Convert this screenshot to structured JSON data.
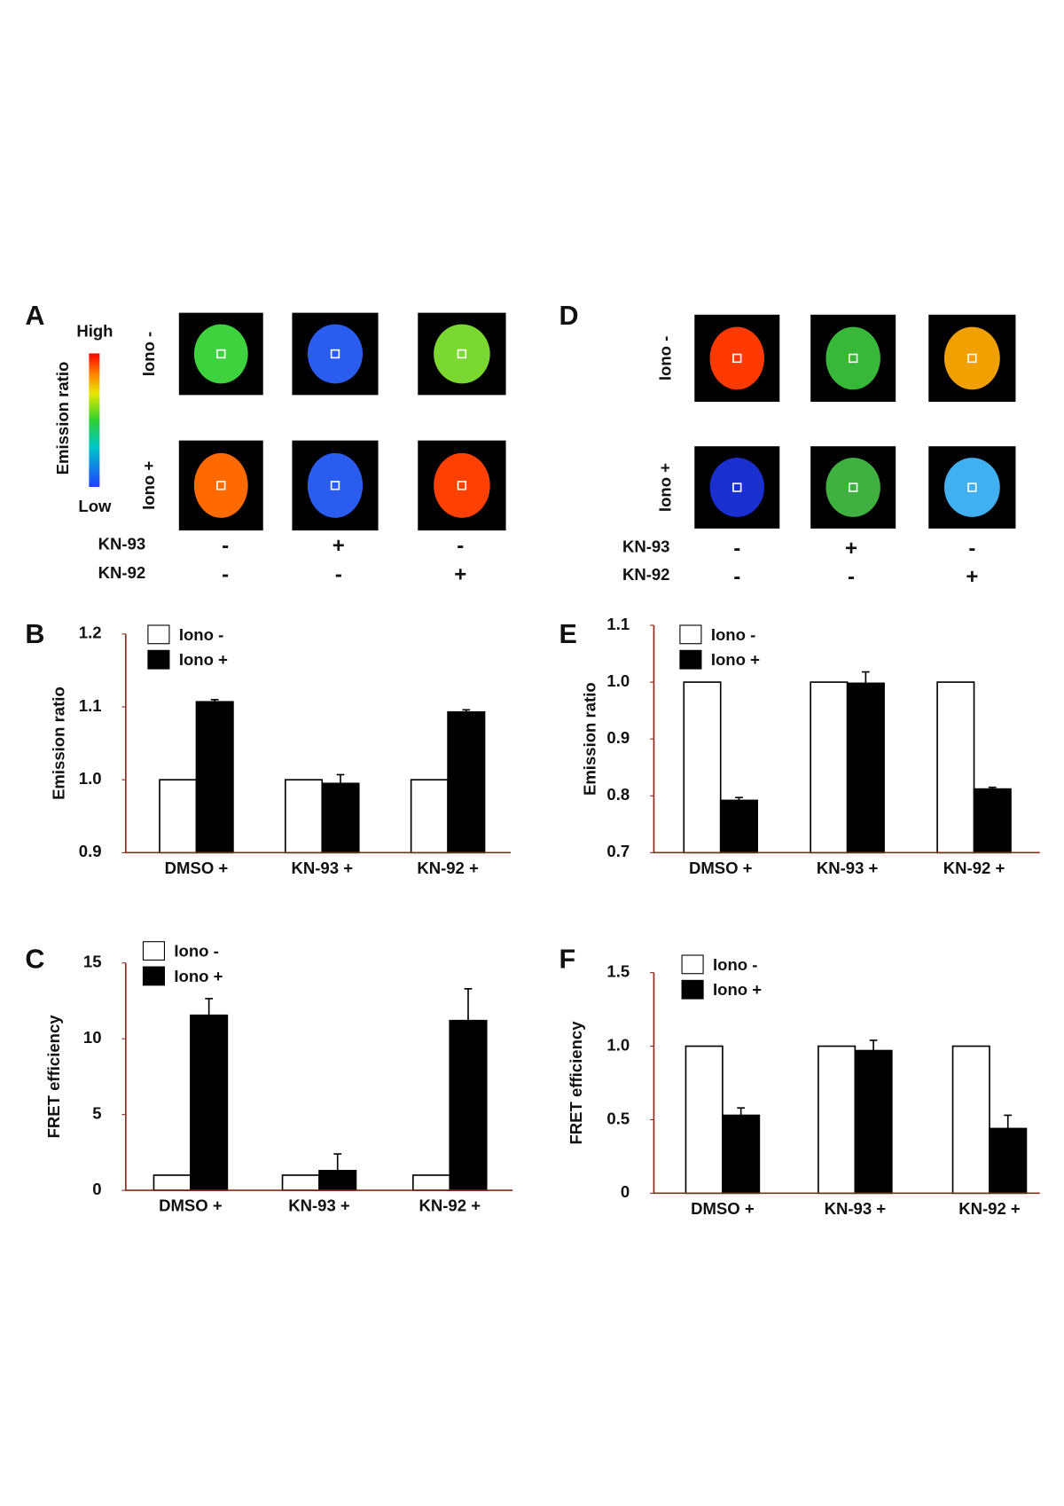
{
  "panel_A": {
    "letter": "A",
    "colorbar_title": "Emission ratio",
    "colorbar_high": "High",
    "colorbar_low": "Low",
    "rows": [
      "Iono -",
      "Iono +"
    ],
    "treatments": [
      {
        "name": "KN-93",
        "signs": [
          "-",
          "+",
          "-"
        ]
      },
      {
        "name": "KN-92",
        "signs": [
          "-",
          "-",
          "+"
        ]
      }
    ]
  },
  "panel_D": {
    "letter": "D",
    "rows": [
      "Iono -",
      "Iono +"
    ],
    "treatments": [
      {
        "name": "KN-93",
        "signs": [
          "-",
          "+",
          "-"
        ]
      },
      {
        "name": "KN-92",
        "signs": [
          "-",
          "-",
          "+"
        ]
      }
    ]
  },
  "chart_data": [
    {
      "panel": "B",
      "type": "bar",
      "y_label": "Emission ratio",
      "categories": [
        "DMSO +",
        "KN-93 +",
        "KN-92 +"
      ],
      "ylim": [
        0.9,
        1.2
      ],
      "yticks": [
        0.9,
        {
          "value": 1,
          "label": "1.0"
        },
        1.1,
        1.2
      ],
      "series": [
        {
          "name": "Iono -",
          "color": "#ffffff",
          "values": [
            1,
            1,
            1
          ]
        },
        {
          "name": "Iono +",
          "color": "#000000",
          "values": [
            1.107,
            0.995,
            1.093
          ],
          "errors": [
            0.003,
            0.012,
            0.003
          ]
        }
      ]
    },
    {
      "panel": "C",
      "type": "bar",
      "y_label": "FRET efficiency",
      "categories": [
        "DMSO +",
        "KN-93 +",
        "KN-92 +"
      ],
      "ylim": [
        0,
        15
      ],
      "yticks": [
        0,
        5,
        10,
        15
      ],
      "series": [
        {
          "name": "Iono -",
          "color": "#ffffff",
          "values": [
            1,
            1,
            1
          ]
        },
        {
          "name": "Iono +",
          "color": "#000000",
          "values": [
            11.55,
            1.3,
            11.2
          ],
          "errors": [
            1.1,
            1.1,
            2.1
          ]
        }
      ]
    },
    {
      "panel": "E",
      "type": "bar",
      "y_label": "Emission ratio",
      "categories": [
        "DMSO +",
        "KN-93 +",
        "KN-92 +"
      ],
      "ylim": [
        0.7,
        1.1
      ],
      "yticks": [
        0.7,
        0.8,
        0.9,
        {
          "value": 1,
          "label": "1.0"
        },
        1.1
      ],
      "series": [
        {
          "name": "Iono -",
          "color": "#ffffff",
          "values": [
            1,
            1,
            1
          ]
        },
        {
          "name": "Iono +",
          "color": "#000000",
          "values": [
            0.792,
            0.998,
            0.812
          ],
          "errors": [
            0.005,
            0.02,
            0.003
          ]
        }
      ]
    },
    {
      "panel": "F",
      "type": "bar",
      "y_label": "FRET efficiency",
      "categories": [
        "DMSO +",
        "KN-93 +",
        "KN-92 +"
      ],
      "ylim": [
        0,
        1.5
      ],
      "yticks": [
        0,
        0.5,
        {
          "value": 1,
          "label": "1.0"
        },
        1.5
      ],
      "series": [
        {
          "name": "Iono -",
          "color": "#ffffff",
          "values": [
            1,
            1,
            1
          ]
        },
        {
          "name": "Iono +",
          "color": "#000000",
          "values": [
            0.53,
            0.97,
            0.44
          ],
          "errors": [
            0.05,
            0.07,
            0.09
          ]
        }
      ]
    }
  ]
}
